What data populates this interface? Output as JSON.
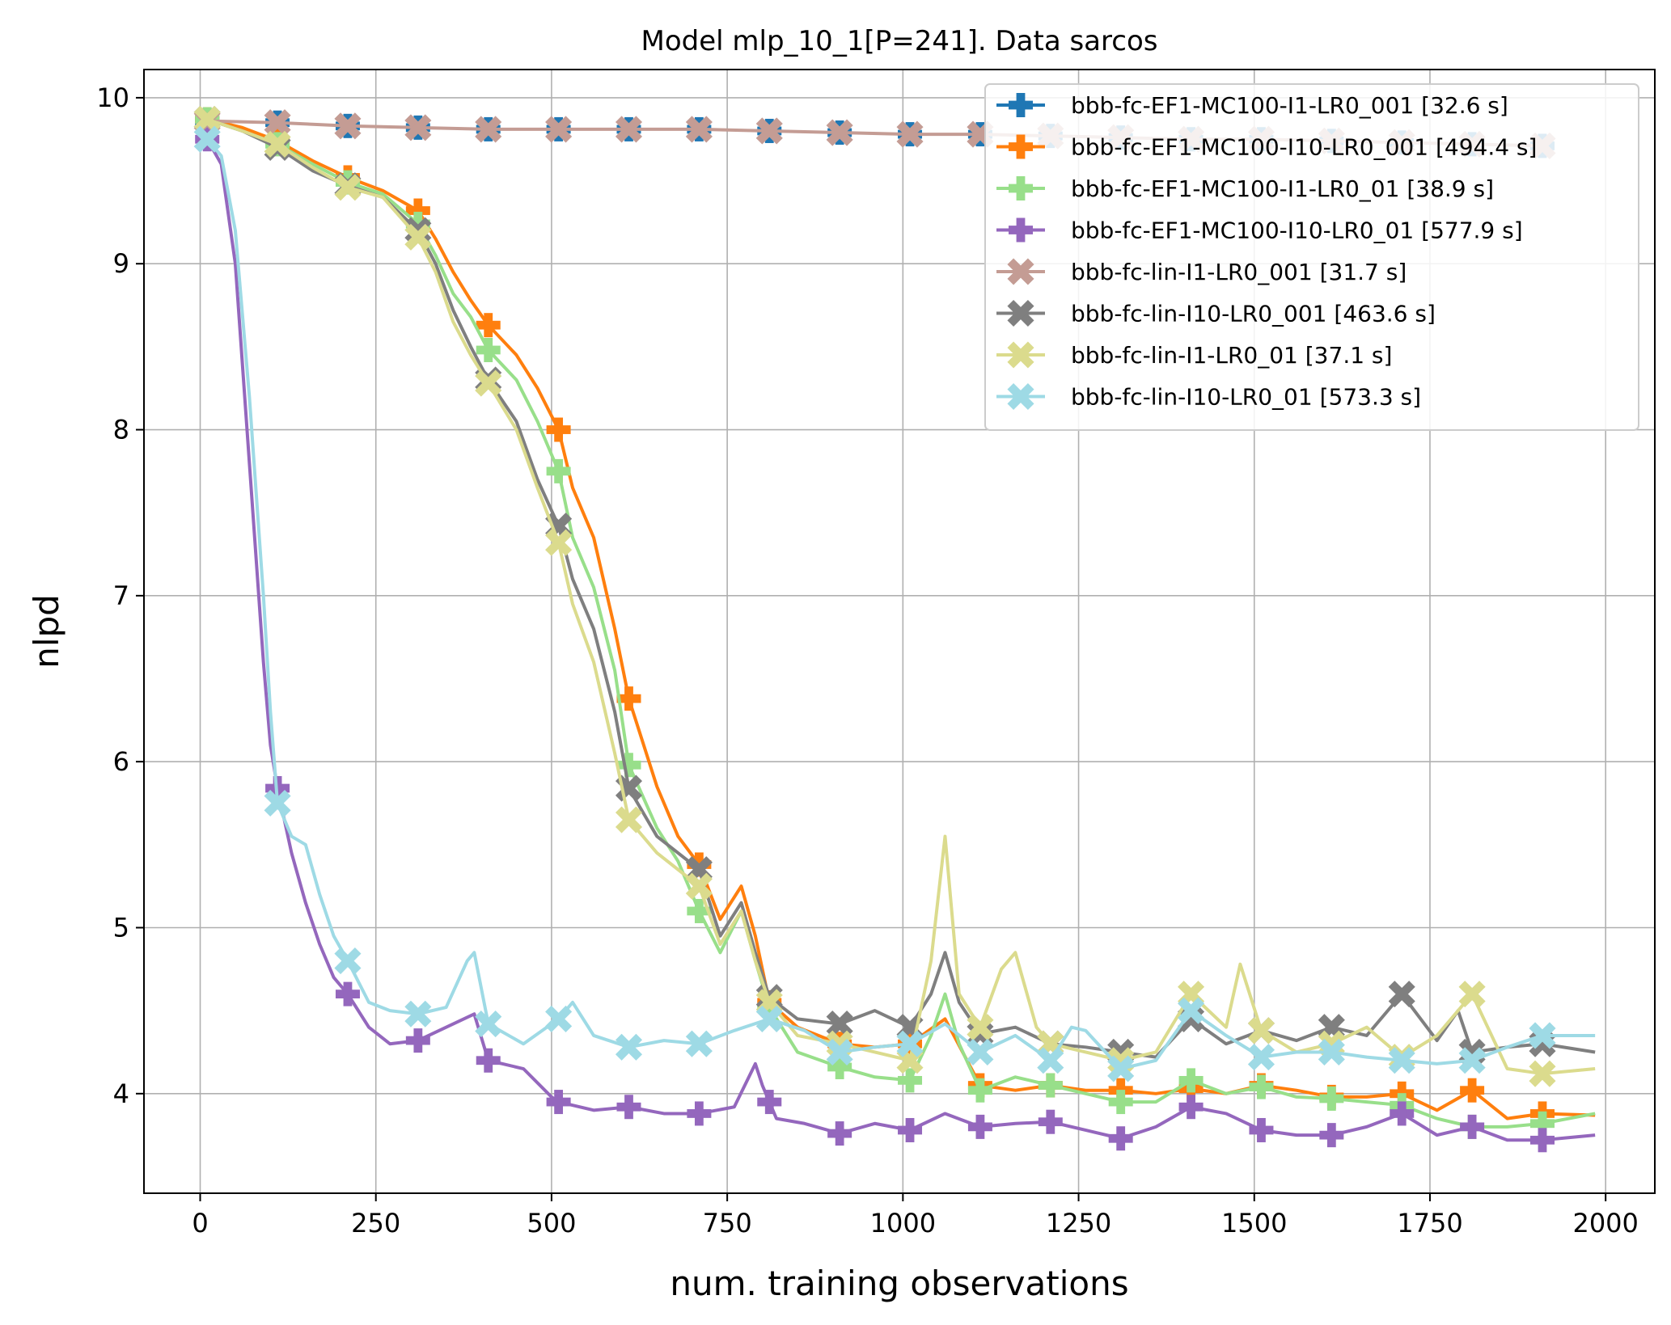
{
  "chart_data": {
    "type": "line",
    "title": "Model mlp_10_1[P=241]. Data sarcos",
    "xlabel": "num. training observations",
    "ylabel": "nlpd",
    "xlim": [
      -80,
      2070
    ],
    "ylim": [
      3.4,
      10.17
    ],
    "xticks": [
      0,
      250,
      500,
      750,
      1000,
      1250,
      1500,
      1750,
      2000
    ],
    "yticks": [
      4,
      5,
      6,
      7,
      8,
      9,
      10
    ],
    "grid": true,
    "legend_position": "top-right",
    "series": [
      {
        "name": "bbb-fc-EF1-MC100-I1-LR0_001 [32.6 s]",
        "color": "#1f77b4",
        "marker": "plus",
        "width": 2,
        "x": [
          10,
          110,
          210,
          310,
          410,
          510,
          610,
          710,
          810,
          910,
          1010,
          1110,
          1210,
          1310,
          1410,
          1510,
          1610,
          1710,
          1810,
          1910
        ],
        "y": [
          9.86,
          9.85,
          9.83,
          9.82,
          9.81,
          9.81,
          9.81,
          9.81,
          9.8,
          9.79,
          9.78,
          9.78,
          9.77,
          9.76,
          9.75,
          9.75,
          9.74,
          9.73,
          9.72,
          9.71
        ]
      },
      {
        "name": "bbb-fc-EF1-MC100-I10-LR0_001 [494.4 s]",
        "color": "#ff7f0e",
        "marker": "plus",
        "width": 4,
        "x": [
          10,
          60,
          110,
          160,
          210,
          260,
          310,
          335,
          360,
          385,
          410,
          450,
          480,
          510,
          530,
          560,
          590,
          610,
          650,
          680,
          710,
          740,
          770,
          790,
          810,
          850,
          910,
          960,
          1010,
          1060,
          1110,
          1160,
          1210,
          1260,
          1310,
          1360,
          1410,
          1460,
          1510,
          1560,
          1610,
          1660,
          1710,
          1760,
          1810,
          1860,
          1910,
          1985
        ],
        "y": [
          9.87,
          9.82,
          9.74,
          9.62,
          9.52,
          9.44,
          9.32,
          9.15,
          8.95,
          8.78,
          8.63,
          8.45,
          8.25,
          8.0,
          7.65,
          7.35,
          6.8,
          6.38,
          5.85,
          5.55,
          5.38,
          5.05,
          5.25,
          4.95,
          4.55,
          4.4,
          4.3,
          4.28,
          4.3,
          4.45,
          4.05,
          4.02,
          4.05,
          4.02,
          4.02,
          4.0,
          4.03,
          4.0,
          4.05,
          4.02,
          3.98,
          3.98,
          4.0,
          3.9,
          4.02,
          3.85,
          3.88,
          3.87
        ]
      },
      {
        "name": "bbb-fc-EF1-MC100-I1-LR0_01 [38.9 s]",
        "color": "#98df8a",
        "marker": "plus",
        "width": 4,
        "x": [
          10,
          60,
          110,
          160,
          210,
          260,
          310,
          335,
          360,
          385,
          410,
          450,
          480,
          510,
          530,
          560,
          590,
          610,
          650,
          680,
          710,
          740,
          770,
          790,
          810,
          850,
          910,
          960,
          1010,
          1040,
          1060,
          1080,
          1110,
          1160,
          1210,
          1260,
          1310,
          1360,
          1410,
          1460,
          1510,
          1560,
          1610,
          1660,
          1710,
          1760,
          1810,
          1860,
          1910,
          1985
        ],
        "y": [
          9.87,
          9.8,
          9.72,
          9.6,
          9.49,
          9.42,
          9.24,
          9.05,
          8.82,
          8.68,
          8.48,
          8.3,
          8.05,
          7.75,
          7.35,
          7.05,
          6.55,
          5.98,
          5.6,
          5.4,
          5.1,
          4.85,
          5.1,
          4.8,
          4.52,
          4.25,
          4.16,
          4.1,
          4.08,
          4.35,
          4.6,
          4.3,
          4.02,
          4.1,
          4.05,
          4.0,
          3.95,
          3.95,
          4.08,
          4.0,
          4.04,
          3.98,
          3.97,
          3.95,
          3.93,
          3.85,
          3.8,
          3.8,
          3.82,
          3.88
        ]
      },
      {
        "name": "bbb-fc-EF1-MC100-I10-LR0_01 [577.9 s]",
        "color": "#9467bd",
        "marker": "plus",
        "width": 4,
        "x": [
          10,
          30,
          50,
          70,
          90,
          100,
          110,
          130,
          150,
          170,
          190,
          210,
          240,
          270,
          310,
          350,
          390,
          410,
          460,
          500,
          510,
          560,
          610,
          660,
          710,
          760,
          790,
          800,
          820,
          860,
          910,
          960,
          1010,
          1060,
          1110,
          1160,
          1210,
          1260,
          1310,
          1360,
          1410,
          1460,
          1510,
          1560,
          1610,
          1660,
          1710,
          1760,
          1810,
          1860,
          1910,
          1985
        ],
        "y": [
          9.75,
          9.6,
          9.0,
          7.8,
          6.6,
          6.1,
          5.84,
          5.45,
          5.15,
          4.9,
          4.7,
          4.6,
          4.4,
          4.3,
          4.32,
          4.4,
          4.48,
          4.2,
          4.15,
          3.98,
          3.95,
          3.9,
          3.92,
          3.88,
          3.88,
          3.92,
          4.18,
          4.05,
          3.85,
          3.82,
          3.76,
          3.82,
          3.78,
          3.88,
          3.8,
          3.82,
          3.83,
          3.78,
          3.73,
          3.8,
          3.92,
          3.88,
          3.78,
          3.75,
          3.75,
          3.8,
          3.88,
          3.75,
          3.8,
          3.72,
          3.72,
          3.75
        ]
      },
      {
        "name": "bbb-fc-lin-I1-LR0_001 [31.7 s]",
        "color": "#c49c94",
        "marker": "x",
        "width": 4,
        "x": [
          10,
          110,
          210,
          310,
          410,
          510,
          610,
          710,
          810,
          910,
          1010,
          1110,
          1210,
          1310,
          1410,
          1510,
          1610,
          1710,
          1810,
          1910
        ],
        "y": [
          9.86,
          9.85,
          9.83,
          9.82,
          9.81,
          9.81,
          9.81,
          9.81,
          9.8,
          9.79,
          9.78,
          9.78,
          9.77,
          9.76,
          9.75,
          9.75,
          9.74,
          9.73,
          9.72,
          9.71
        ]
      },
      {
        "name": "bbb-fc-lin-I10-LR0_001 [463.6 s]",
        "color": "#7f7f7f",
        "marker": "x",
        "width": 4,
        "x": [
          10,
          60,
          110,
          160,
          210,
          260,
          310,
          335,
          360,
          385,
          410,
          450,
          480,
          510,
          530,
          560,
          590,
          610,
          650,
          680,
          710,
          740,
          770,
          790,
          810,
          850,
          910,
          960,
          1010,
          1040,
          1060,
          1080,
          1110,
          1160,
          1210,
          1260,
          1310,
          1360,
          1410,
          1460,
          1510,
          1560,
          1610,
          1660,
          1710,
          1760,
          1790,
          1810,
          1860,
          1910,
          1985
        ],
        "y": [
          9.87,
          9.8,
          9.7,
          9.56,
          9.47,
          9.4,
          9.2,
          9.0,
          8.72,
          8.5,
          8.3,
          8.05,
          7.7,
          7.42,
          7.1,
          6.8,
          6.3,
          5.84,
          5.55,
          5.45,
          5.35,
          4.95,
          5.15,
          4.85,
          4.58,
          4.45,
          4.42,
          4.5,
          4.4,
          4.6,
          4.85,
          4.55,
          4.36,
          4.4,
          4.3,
          4.28,
          4.25,
          4.22,
          4.45,
          4.3,
          4.38,
          4.32,
          4.4,
          4.35,
          4.6,
          4.32,
          4.5,
          4.25,
          4.28,
          4.3,
          4.25
        ]
      },
      {
        "name": "bbb-fc-lin-I1-LR0_01 [37.1 s]",
        "color": "#dbdb8d",
        "marker": "x",
        "width": 4,
        "x": [
          10,
          60,
          110,
          160,
          210,
          260,
          310,
          335,
          360,
          385,
          410,
          450,
          480,
          510,
          530,
          560,
          590,
          610,
          650,
          680,
          710,
          740,
          770,
          790,
          810,
          850,
          910,
          960,
          1010,
          1040,
          1060,
          1080,
          1110,
          1140,
          1160,
          1190,
          1210,
          1260,
          1310,
          1360,
          1410,
          1460,
          1480,
          1510,
          1560,
          1610,
          1660,
          1710,
          1760,
          1810,
          1860,
          1910,
          1985
        ],
        "y": [
          9.87,
          9.8,
          9.72,
          9.58,
          9.46,
          9.4,
          9.16,
          8.95,
          8.65,
          8.45,
          8.28,
          8.0,
          7.65,
          7.32,
          6.95,
          6.6,
          6.05,
          5.65,
          5.45,
          5.35,
          5.25,
          4.9,
          5.1,
          4.8,
          4.55,
          4.35,
          4.3,
          4.25,
          4.2,
          4.8,
          5.55,
          4.6,
          4.4,
          4.75,
          4.85,
          4.4,
          4.3,
          4.25,
          4.2,
          4.25,
          4.6,
          4.4,
          4.78,
          4.38,
          4.25,
          4.3,
          4.4,
          4.22,
          4.35,
          4.6,
          4.15,
          4.12,
          4.15
        ]
      },
      {
        "name": "bbb-fc-lin-I10-LR0_01 [573.3 s]",
        "color": "#9edae5",
        "marker": "x",
        "width": 4,
        "x": [
          10,
          30,
          50,
          70,
          90,
          100,
          110,
          130,
          150,
          170,
          190,
          210,
          240,
          270,
          310,
          350,
          380,
          390,
          410,
          460,
          510,
          530,
          560,
          610,
          660,
          710,
          760,
          810,
          860,
          910,
          960,
          1010,
          1060,
          1110,
          1160,
          1210,
          1240,
          1260,
          1310,
          1360,
          1410,
          1460,
          1510,
          1560,
          1610,
          1660,
          1710,
          1760,
          1810,
          1860,
          1910,
          1985
        ],
        "y": [
          9.75,
          9.65,
          9.2,
          8.2,
          7.0,
          6.3,
          5.75,
          5.55,
          5.5,
          5.2,
          4.95,
          4.8,
          4.55,
          4.5,
          4.48,
          4.52,
          4.8,
          4.85,
          4.42,
          4.3,
          4.45,
          4.55,
          4.35,
          4.28,
          4.32,
          4.3,
          4.38,
          4.45,
          4.38,
          4.25,
          4.28,
          4.3,
          4.42,
          4.25,
          4.35,
          4.2,
          4.4,
          4.38,
          4.15,
          4.2,
          4.5,
          4.35,
          4.22,
          4.25,
          4.25,
          4.22,
          4.2,
          4.18,
          4.2,
          4.28,
          4.35,
          4.35
        ]
      }
    ]
  }
}
